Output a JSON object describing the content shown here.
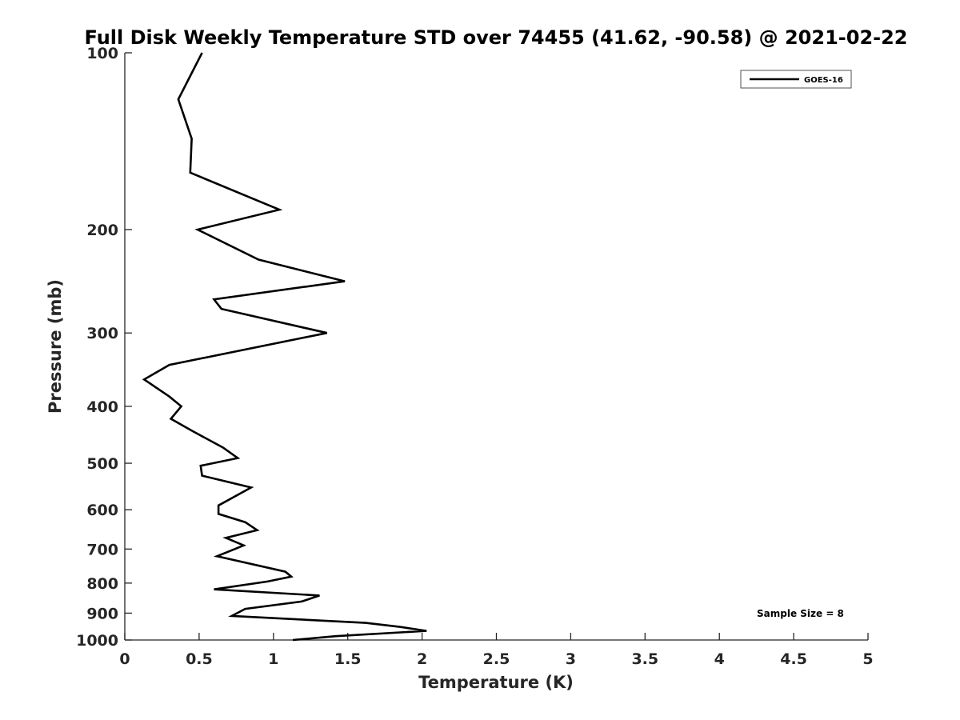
{
  "chart_data": {
    "type": "line",
    "title": "Full Disk Weekly Temperature STD over 74455 (41.62, -90.58) @ 2021-02-22",
    "xlabel": "Temperature (K)",
    "ylabel": "Pressure (mb)",
    "xlim": [
      0,
      5
    ],
    "ylim": [
      1000,
      100
    ],
    "y_scale": "log",
    "x_ticks": [
      "0",
      "0.5",
      "1",
      "1.5",
      "2",
      "2.5",
      "3",
      "3.5",
      "4",
      "4.5",
      "5"
    ],
    "y_ticks": [
      "100",
      "200",
      "300",
      "400",
      "500",
      "600",
      "700",
      "800",
      "900",
      "1000"
    ],
    "grid": false,
    "legend_position": "top-right",
    "annotation": "Sample Size = 8",
    "series": [
      {
        "name": "GOES-16",
        "color": "#000000",
        "x": [
          0.52,
          0.36,
          0.45,
          0.44,
          1.04,
          0.49,
          0.9,
          1.48,
          0.6,
          0.65,
          1.36,
          0.3,
          0.13,
          0.3,
          0.38,
          0.31,
          0.45,
          0.66,
          0.76,
          0.51,
          0.52,
          0.85,
          0.63,
          0.63,
          0.81,
          0.89,
          0.68,
          0.8,
          0.74,
          0.62,
          1.08,
          1.12,
          0.96,
          0.6,
          1.31,
          1.19,
          0.81,
          0.72,
          1.62,
          1.85,
          2.03,
          1.42,
          1.13
        ],
        "y": [
          100,
          120,
          140,
          160,
          185,
          200,
          225,
          245,
          263,
          273,
          300,
          340,
          360,
          385,
          400,
          420,
          440,
          470,
          490,
          505,
          525,
          550,
          590,
          610,
          630,
          650,
          670,
          690,
          700,
          720,
          765,
          780,
          795,
          820,
          840,
          860,
          885,
          910,
          935,
          950,
          965,
          985,
          1000
        ]
      }
    ]
  }
}
